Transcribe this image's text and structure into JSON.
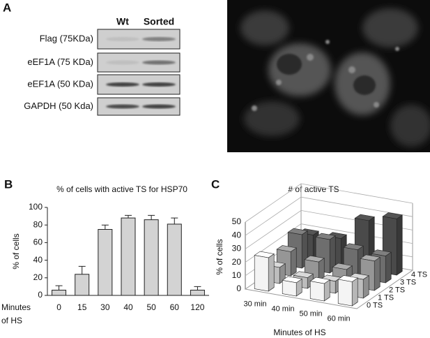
{
  "panel_a": {
    "label": "A",
    "blot_columns": [
      "Wt",
      "Sorted"
    ],
    "blot_rows": [
      "Flag (75KDa)",
      "eEF1A (75 KDa)",
      "eEF1A (50 KDa)",
      "GAPDH (50 Kda)"
    ]
  },
  "chart_data": [
    {
      "type": "bar",
      "panel_label": "B",
      "title": "% of cells with active TS for HSP70",
      "y_label": "% of cells",
      "x_label": [
        "Minutes",
        "of HS"
      ],
      "categories": [
        "0",
        "15",
        "30",
        "40",
        "50",
        "60",
        "120"
      ],
      "values": [
        6,
        24,
        75,
        88,
        86,
        81,
        6
      ],
      "errors": [
        5,
        9,
        5,
        3,
        5,
        7,
        4
      ],
      "color": "#d3d3d3",
      "ylim": [
        0,
        100
      ],
      "yticks": [
        0,
        20,
        40,
        60,
        80,
        100
      ]
    },
    {
      "type": "bar3d",
      "panel_label": "C",
      "title": "# of active TS",
      "y_label": "% of cells",
      "x_label": "Minutes of HS",
      "categories": [
        "30 min",
        "40 min",
        "50 min",
        "60 min"
      ],
      "series": [
        {
          "name": "0 TS",
          "color": "#f4f4f4",
          "values": [
            25,
            10,
            13,
            18
          ]
        },
        {
          "name": "1 TS",
          "color": "#bdbdbd",
          "values": [
            12,
            8,
            9,
            14
          ]
        },
        {
          "name": "2 TS",
          "color": "#969696",
          "values": [
            18,
            14,
            12,
            22
          ]
        },
        {
          "name": "3 TS",
          "color": "#6e6e6e",
          "values": [
            25,
            25,
            21,
            20
          ]
        },
        {
          "name": "4 TS",
          "color": "#4a4a4a",
          "values": [
            19,
            20,
            37,
            42
          ]
        }
      ],
      "ylim": [
        0,
        50
      ],
      "yticks": [
        0,
        10,
        20,
        30,
        40,
        50
      ],
      "grid": true
    }
  ]
}
